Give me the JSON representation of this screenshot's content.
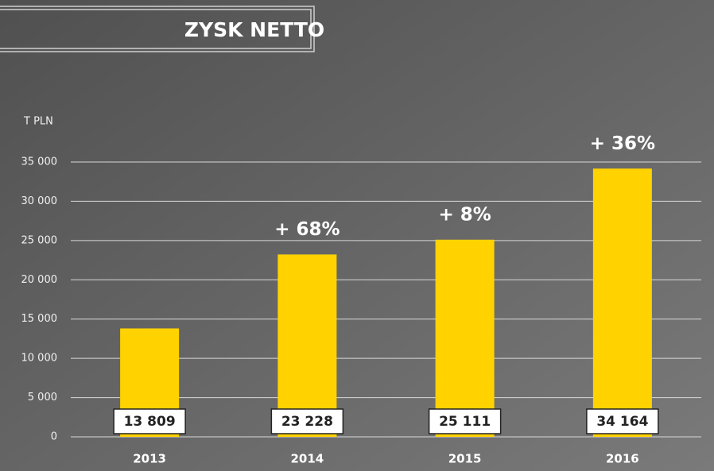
{
  "chart_data": {
    "type": "bar",
    "title": "ZYSK NETTO",
    "y_label": "T PLN",
    "categories": [
      "2013",
      "2014",
      "2015",
      "2016"
    ],
    "values": [
      13809,
      23228,
      25111,
      34164
    ],
    "value_labels": [
      "13 809",
      "23 228",
      "25 111",
      "34 164"
    ],
    "growth_labels": [
      null,
      "+ 68%",
      "+ 8%",
      "+ 36%"
    ],
    "color": "#ffd200",
    "ylim": [
      0,
      35000
    ],
    "yticks": [
      0,
      {
        "value": 5000,
        "label": "5 000"
      },
      {
        "value": 10000,
        "label": "10 000"
      },
      {
        "value": 15000,
        "label": "15 000"
      },
      {
        "value": 20000,
        "label": "20 000"
      },
      {
        "value": 25000,
        "label": "25 000"
      },
      {
        "value": 30000,
        "label": "30 000"
      },
      {
        "value": 35000,
        "label": "35 000"
      }
    ],
    "grid": true
  }
}
